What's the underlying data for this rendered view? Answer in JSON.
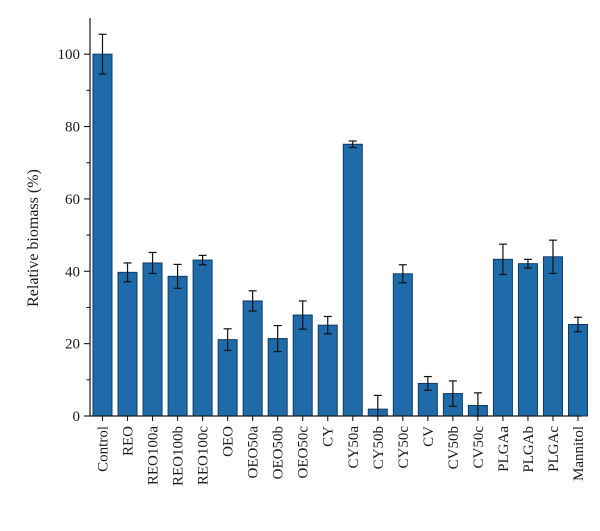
{
  "chart_data": {
    "type": "bar",
    "title": "",
    "xlabel": "",
    "ylabel": "Relative biomass (%)",
    "ylim": [
      0,
      110
    ],
    "yticks": [
      0,
      20,
      40,
      60,
      80,
      100
    ],
    "grid": false,
    "legend": "none",
    "bar_color": "#1f6aa8",
    "bar_edge_color": "#0d3a66",
    "categories": [
      "Control",
      "REO",
      "REO100a",
      "REO100b",
      "REO100c",
      "OEO",
      "OEO50a",
      "OEO50b",
      "OEO50c",
      "CY",
      "CY50a",
      "CY50b",
      "CY50c",
      "CV",
      "CV50b",
      "CV50c",
      "PLGAa",
      "PLGAb",
      "PLGAc",
      "Mannitol"
    ],
    "values": [
      100,
      39.7,
      42.3,
      38.6,
      43.1,
      21.1,
      31.8,
      21.4,
      27.9,
      25.1,
      75.1,
      1.9,
      39.3,
      9.0,
      6.2,
      2.9,
      43.3,
      42.1,
      44.0,
      25.3
    ],
    "errors": [
      5.5,
      2.6,
      2.9,
      3.3,
      1.3,
      3.0,
      2.8,
      3.6,
      3.9,
      2.4,
      0.9,
      3.8,
      2.5,
      1.9,
      3.5,
      3.5,
      4.2,
      1.2,
      4.6,
      2.0
    ]
  }
}
